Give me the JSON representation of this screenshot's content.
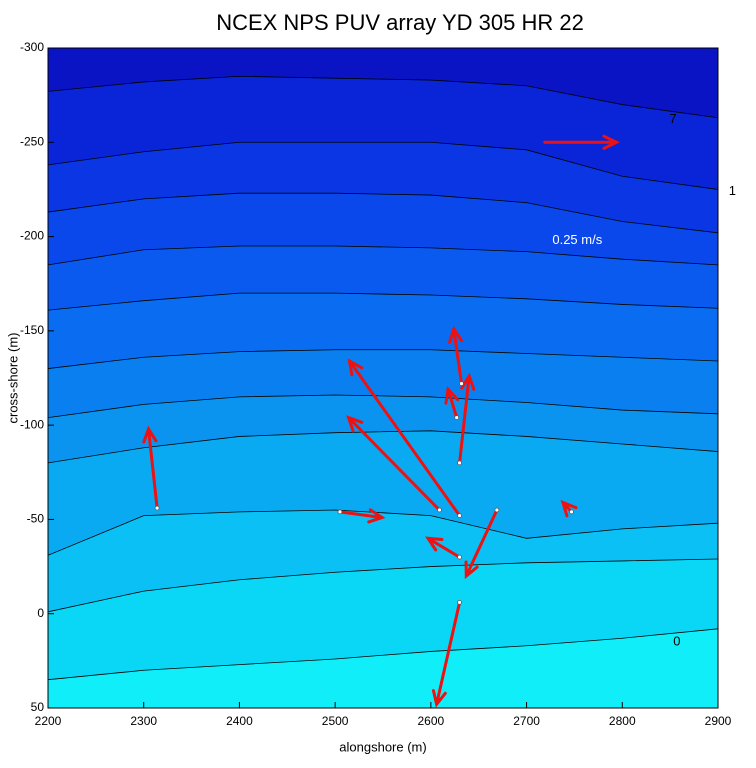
{
  "chart_data": {
    "type": "contour",
    "title": "NCEX  NPS PUV array  YD 305  HR 22",
    "x_label": "alongshore (m)",
    "y_label": "cross-shore (m)",
    "xlim": [
      2200,
      2900
    ],
    "ylim": [
      -300,
      50
    ],
    "y_reversed": true,
    "xticks": [
      2200,
      2300,
      2400,
      2500,
      2600,
      2700,
      2800,
      2900
    ],
    "yticks": [
      -300,
      -250,
      -200,
      -150,
      -100,
      -50,
      0,
      50
    ],
    "contour_x": [
      2200,
      2300,
      2400,
      2500,
      2600,
      2700,
      2800,
      2900
    ],
    "contours": [
      {
        "y": [
          -277,
          -282,
          -285,
          -284,
          -283,
          -280,
          -270,
          -263
        ]
      },
      {
        "y": [
          -238,
          -245,
          -250,
          -250,
          -250,
          -246,
          -232,
          -225
        ]
      },
      {
        "y": [
          -213,
          -220,
          -223,
          -223,
          -222,
          -218,
          -208,
          -202
        ]
      },
      {
        "y": [
          -185,
          -193,
          -195,
          -195,
          -194,
          -192,
          -188,
          -185
        ]
      },
      {
        "y": [
          -161,
          -166,
          -170,
          -170,
          -169,
          -167,
          -164,
          -162
        ]
      },
      {
        "y": [
          -130,
          -136,
          -139,
          -140,
          -140,
          -138,
          -136,
          -134
        ]
      },
      {
        "y": [
          -104,
          -111,
          -115,
          -116,
          -115,
          -112,
          -108,
          -106
        ]
      },
      {
        "y": [
          -80,
          -88,
          -94,
          -96,
          -97,
          -94,
          -90,
          -86
        ]
      },
      {
        "y": [
          -31,
          -52,
          -54,
          -55,
          -52,
          -40,
          -45,
          -48
        ]
      },
      {
        "y": [
          -1,
          -12,
          -18,
          -22,
          -25,
          -27,
          -28,
          -29
        ]
      },
      {
        "y": [
          35,
          30,
          27,
          24,
          20,
          17,
          13,
          8
        ]
      }
    ],
    "band_colors": [
      "#0a14c4",
      "#0a24d8",
      "#0a36e4",
      "#0a48ec",
      "#0a5af0",
      "#0a6cf0",
      "#0a80f0",
      "#0a94f0",
      "#0aaaf2",
      "#0ac0f4",
      "#0ad6f6",
      "#10eefa"
    ],
    "line_color": "#000000",
    "contour_labels": [
      {
        "level": 7,
        "x": 2853,
        "y": -262
      },
      {
        "level": 1,
        "x": 2915,
        "y": -224
      },
      {
        "level": 0,
        "x": 2857,
        "y": 15
      }
    ],
    "vectors": {
      "color": "#ee1111",
      "x": [
        2314,
        2505,
        2609,
        2630,
        2630,
        2630,
        2669,
        2630,
        2627,
        2632,
        2747
      ],
      "y": [
        -56,
        -54,
        -55,
        -52,
        -6,
        -30,
        -55,
        -80,
        -104,
        -122,
        -54
      ],
      "u": [
        -9,
        44,
        -95,
        -115,
        -24,
        -33,
        -32,
        10,
        -9,
        -8,
        -9
      ],
      "v": [
        -42,
        3,
        -49,
        -82,
        54,
        -10,
        35,
        -46,
        -15,
        -29,
        -5
      ]
    },
    "reference": {
      "x": 2719,
      "y": -250,
      "u": 75,
      "v": 0,
      "label": "0.25 m/s",
      "label_x": 2753,
      "label_y": -198
    }
  }
}
